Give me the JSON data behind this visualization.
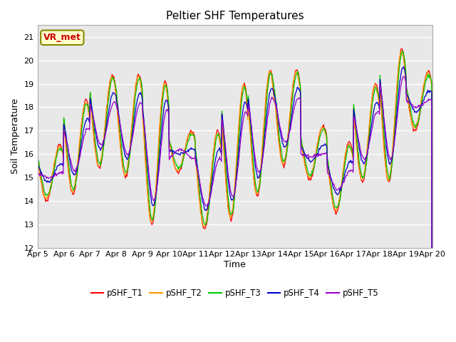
{
  "title": "Peltier SHF Temperatures",
  "ylabel": "Soil Temperature",
  "xlabel": "Time",
  "annotation_text": "VR_met",
  "annotation_color": "#cc0000",
  "annotation_bg": "#ffffcc",
  "annotation_border": "#888800",
  "ylim": [
    12.0,
    21.5
  ],
  "yticks": [
    12.0,
    13.0,
    14.0,
    15.0,
    16.0,
    17.0,
    18.0,
    19.0,
    20.0,
    21.0
  ],
  "x_tick_labels": [
    "Apr 5",
    "Apr 6",
    "Apr 7",
    "Apr 8",
    "Apr 9",
    "Apr 10",
    "Apr 11",
    "Apr 12",
    "Apr 13",
    "Apr 14",
    "Apr 15",
    "Apr 16",
    "Apr 17",
    "Apr 18",
    "Apr 19",
    "Apr 20"
  ],
  "series_colors": [
    "#ff0000",
    "#ff9900",
    "#00cc00",
    "#0000cc",
    "#9900cc"
  ],
  "series_labels": [
    "pSHF_T1",
    "pSHF_T2",
    "pSHF_T3",
    "pSHF_T4",
    "pSHF_T5"
  ],
  "bg_color": "#e8e8e8",
  "fig_bg": "#ffffff",
  "n_days": 15,
  "pts_per_day": 48,
  "day_peaks": [
    16.4,
    18.3,
    19.4,
    19.4,
    19.1,
    17.0,
    17.0,
    19.0,
    19.6,
    19.6,
    17.2,
    16.5,
    19.0,
    20.5,
    19.5
  ],
  "day_troughs": [
    14.0,
    14.3,
    15.4,
    15.0,
    13.0,
    15.2,
    12.8,
    13.2,
    14.2,
    15.5,
    14.9,
    13.5,
    14.8,
    14.8,
    17.0
  ],
  "peak_phase": 0.65,
  "trough_phase": 0.15
}
